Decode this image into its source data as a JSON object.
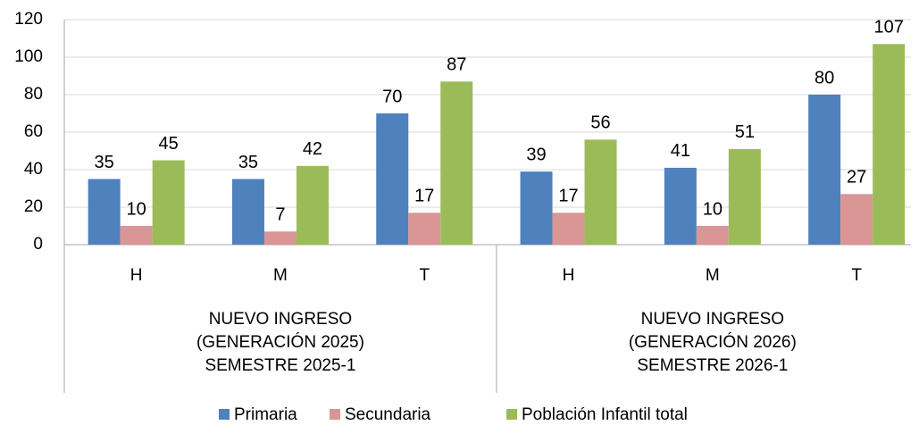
{
  "chart_data": {
    "type": "bar",
    "categories": [
      "H",
      "M",
      "T",
      "H",
      "M",
      "T"
    ],
    "groups": [
      [
        "NUEVO INGRESO",
        "(GENERACIÓN 2025)",
        "SEMESTRE 2025-1"
      ],
      [
        "NUEVO INGRESO",
        "(GENERACIÓN 2026)",
        "SEMESTRE 2026-1"
      ]
    ],
    "series": [
      {
        "name": "Primaria",
        "color": "#4f81bd",
        "values": [
          35,
          35,
          70,
          39,
          41,
          80
        ]
      },
      {
        "name": "Secundaria",
        "color": "#d99694",
        "values": [
          10,
          7,
          17,
          17,
          10,
          27
        ]
      },
      {
        "name": "Población Infantil total",
        "color": "#9bbb59",
        "values": [
          45,
          42,
          87,
          56,
          51,
          107
        ]
      }
    ],
    "ylim": [
      0,
      120
    ],
    "yticks": [
      0,
      20,
      40,
      60,
      80,
      100,
      120
    ],
    "grid": true,
    "legend": "bottom"
  }
}
